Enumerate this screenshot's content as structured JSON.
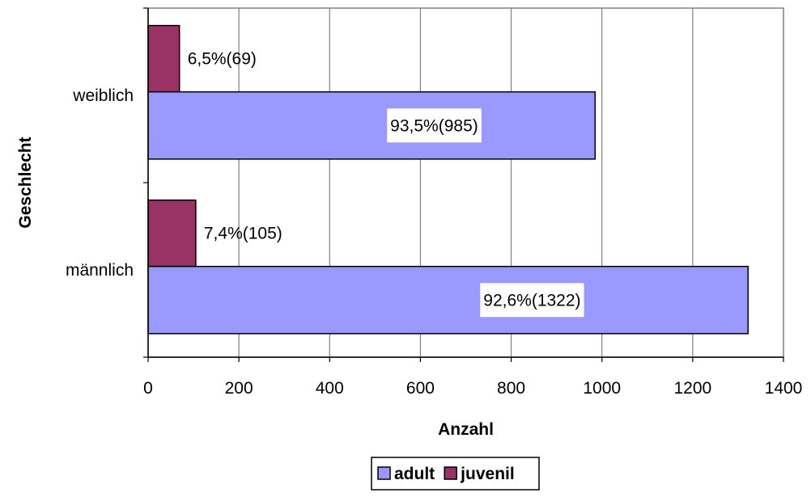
{
  "chart_data": {
    "type": "bar",
    "orientation": "horizontal",
    "title": "",
    "xlabel": "Anzahl",
    "ylabel": "Geschlecht",
    "categories": [
      "männlich",
      "weiblich"
    ],
    "xlim": [
      0,
      1400
    ],
    "xticks": [
      0,
      200,
      400,
      600,
      800,
      1000,
      1200,
      1400
    ],
    "grid": "vertical",
    "legend_position": "bottom",
    "series": [
      {
        "name": "adult",
        "color": "#9999FF",
        "values": [
          1322,
          985
        ],
        "labels": [
          "92,6%(1322)",
          "93,5%(985)"
        ]
      },
      {
        "name": "juvenil",
        "color": "#993366",
        "values": [
          105,
          69
        ],
        "labels": [
          "7,4%(105)",
          "6,5%(69)"
        ]
      }
    ]
  }
}
